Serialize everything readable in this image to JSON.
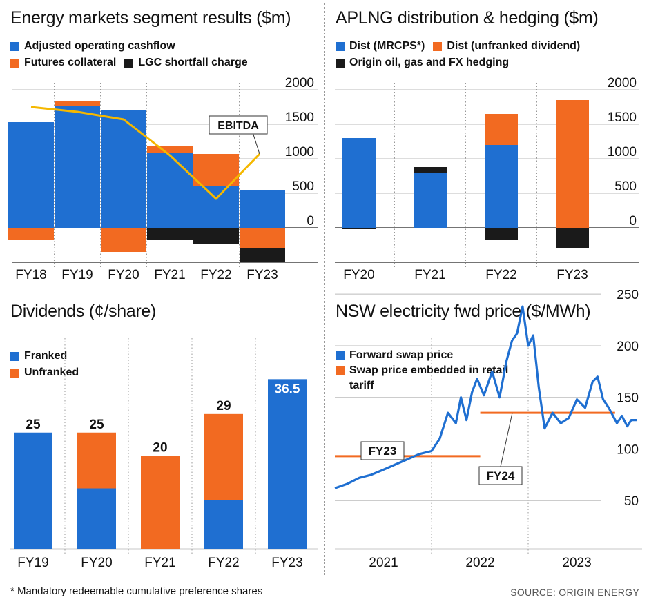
{
  "colors": {
    "blue": "#1f6fd1",
    "orange": "#f26a21",
    "black": "#1a1a1a",
    "gold": "#f5b800"
  },
  "panels": {
    "energy": {
      "title": "Energy markets segment results ($m)",
      "legend": [
        {
          "label": "Adjusted operating cashflow",
          "color": "#1f6fd1"
        },
        {
          "label": "Futures collateral",
          "color": "#f26a21"
        },
        {
          "label": "LGC shortfall charge",
          "color": "#1a1a1a"
        }
      ]
    },
    "aplng": {
      "title": "APLNG distribution & hedging ($m)",
      "legend": [
        {
          "label": "Dist (MRCPS*)",
          "color": "#1f6fd1"
        },
        {
          "label": "Dist (unfranked dividend)",
          "color": "#f26a21"
        },
        {
          "label": "Origin oil, gas and FX hedging",
          "color": "#1a1a1a"
        }
      ]
    },
    "dividends": {
      "title": "Dividends (¢/share)",
      "legend": [
        {
          "label": "Franked",
          "color": "#1f6fd1"
        },
        {
          "label": "Unfranked",
          "color": "#f26a21"
        }
      ]
    },
    "nsw": {
      "title": "NSW electricity fwd price ($/MWh)",
      "legend": [
        {
          "label": "Forward swap price",
          "color": "#1f6fd1"
        },
        {
          "label": "Swap price embedded in retail tariff",
          "color": "#f26a21"
        }
      ]
    }
  },
  "chart_data": [
    {
      "id": "energy",
      "type": "bar",
      "title": "Energy markets segment results ($m)",
      "categories": [
        "FY18",
        "FY19",
        "FY20",
        "FY21",
        "FY22",
        "FY23"
      ],
      "series": [
        {
          "name": "Adjusted operating cashflow",
          "values": [
            1530,
            1760,
            1710,
            1090,
            600,
            550
          ]
        },
        {
          "name": "Futures collateral",
          "values": [
            -180,
            80,
            -350,
            100,
            470,
            -300
          ]
        },
        {
          "name": "LGC shortfall charge",
          "values": [
            0,
            0,
            0,
            -170,
            -240,
            -200
          ]
        }
      ],
      "line": {
        "name": "EBITDA",
        "values": [
          1750,
          1680,
          1570,
          1050,
          420,
          1070
        ]
      },
      "annotation": "EBITDA",
      "yticks": [
        0,
        500,
        1000,
        1500,
        2000
      ],
      "ylim": [
        -500,
        2000
      ]
    },
    {
      "id": "aplng",
      "type": "bar",
      "title": "APLNG distribution & hedging ($m)",
      "categories": [
        "FY20",
        "FY21",
        "FY22",
        "FY23"
      ],
      "series": [
        {
          "name": "Dist (MRCPS*)",
          "values": [
            1300,
            800,
            1200,
            0
          ]
        },
        {
          "name": "Dist (unfranked dividend)",
          "values": [
            0,
            0,
            450,
            1850
          ]
        },
        {
          "name": "Origin oil, gas and FX hedging",
          "values": [
            -20,
            80,
            -170,
            -300
          ]
        }
      ],
      "yticks": [
        0,
        500,
        1000,
        1500,
        2000
      ],
      "ylim": [
        -500,
        2000
      ]
    },
    {
      "id": "dividends",
      "type": "bar",
      "title": "Dividends (¢/share)",
      "categories": [
        "FY19",
        "FY20",
        "FY21",
        "FY22",
        "FY23"
      ],
      "series": [
        {
          "name": "Franked",
          "values": [
            25,
            13,
            0,
            10.5,
            36.5
          ]
        },
        {
          "name": "Unfranked",
          "values": [
            0,
            12,
            20,
            18.5,
            0
          ]
        }
      ],
      "totals": [
        "25",
        "25",
        "20",
        "29",
        "36.5"
      ],
      "ylim": [
        0,
        38
      ]
    },
    {
      "id": "nsw",
      "type": "line",
      "title": "NSW electricity fwd price ($/MWh)",
      "xlim": [
        "2020-07-01",
        "2023-10-01"
      ],
      "xticks": [
        "2021",
        "2022",
        "2023"
      ],
      "yticks": [
        50,
        100,
        150,
        200,
        250
      ],
      "ylim": [
        20,
        255
      ],
      "series": [
        {
          "name": "Forward swap price",
          "x": [
            "2020-07-01",
            "2020-08-15",
            "2020-10-01",
            "2020-11-15",
            "2021-01-01",
            "2021-02-15",
            "2021-04-01",
            "2021-05-15",
            "2021-07-01",
            "2021-08-01",
            "2021-09-01",
            "2021-10-01",
            "2021-10-20",
            "2021-11-10",
            "2021-12-01",
            "2021-12-20",
            "2022-01-15",
            "2022-02-15",
            "2022-03-15",
            "2022-04-10",
            "2022-05-01",
            "2022-05-20",
            "2022-06-10",
            "2022-07-01",
            "2022-07-20",
            "2022-08-10",
            "2022-09-01",
            "2022-10-01",
            "2022-11-01",
            "2022-12-01",
            "2023-01-01",
            "2023-02-01",
            "2023-03-01",
            "2023-03-20",
            "2023-04-10",
            "2023-05-01",
            "2023-06-01",
            "2023-06-20",
            "2023-07-10",
            "2023-07-25",
            "2023-08-15"
          ],
          "y": [
            62,
            66,
            72,
            75,
            80,
            85,
            90,
            95,
            98,
            110,
            135,
            125,
            150,
            128,
            155,
            168,
            152,
            175,
            150,
            185,
            205,
            212,
            238,
            200,
            210,
            160,
            120,
            135,
            125,
            130,
            148,
            140,
            165,
            170,
            148,
            140,
            125,
            132,
            122,
            128,
            128
          ]
        },
        {
          "name": "Swap price embedded in retail tariff",
          "segments": [
            {
              "label": "FY23",
              "x": [
                "2020-07-01",
                "2022-01-01"
              ],
              "y": 93
            },
            {
              "label": "FY24",
              "x": [
                "2022-01-01",
                "2023-05-25"
              ],
              "y": 135
            }
          ]
        }
      ]
    }
  ],
  "footnote": "* Mandatory redeemable cumulative preference shares",
  "source": "SOURCE: ORIGIN ENERGY"
}
